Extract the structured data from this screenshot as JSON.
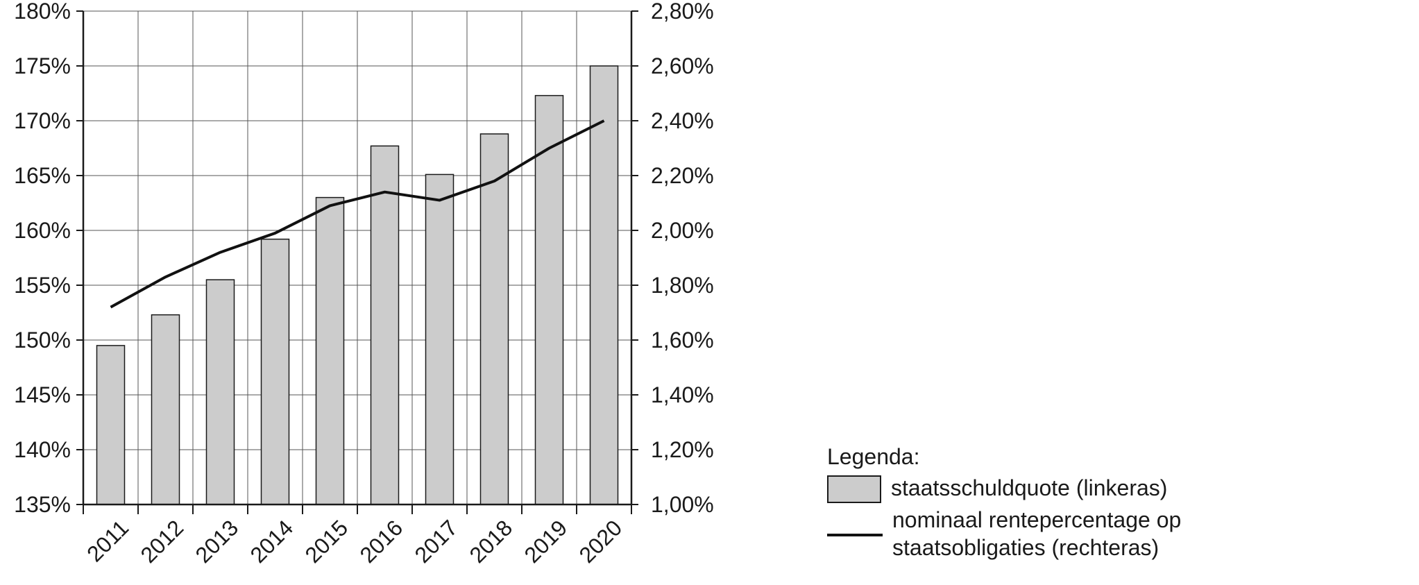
{
  "chart_data": {
    "type": "bar",
    "categories": [
      "2011",
      "2012",
      "2013",
      "2014",
      "2015",
      "2016",
      "2017",
      "2018",
      "2019",
      "2020"
    ],
    "series": [
      {
        "name": "staatsschuldquote (linkeras)",
        "type": "bar",
        "axis": "left",
        "values": [
          149.5,
          152.3,
          155.5,
          159.2,
          163.0,
          167.7,
          165.1,
          168.8,
          172.3,
          175.0
        ]
      },
      {
        "name": "nominaal rentepercentage op staatsobligaties (rechteras)",
        "type": "line",
        "axis": "right",
        "values": [
          1.72,
          1.83,
          1.92,
          1.99,
          2.09,
          2.14,
          2.11,
          2.18,
          2.3,
          2.4
        ]
      }
    ],
    "y_left": {
      "ylim": [
        135,
        180
      ],
      "ticks": [
        135,
        140,
        145,
        150,
        155,
        160,
        165,
        170,
        175,
        180
      ],
      "tick_labels": [
        "135%",
        "140%",
        "145%",
        "150%",
        "155%",
        "160%",
        "165%",
        "170%",
        "175%",
        "180%"
      ]
    },
    "y_right": {
      "ylim": [
        1.0,
        2.8
      ],
      "ticks": [
        1.0,
        1.2,
        1.4,
        1.6,
        1.8,
        2.0,
        2.2,
        2.4,
        2.6,
        2.8
      ],
      "tick_labels": [
        "1,00%",
        "1,20%",
        "1,40%",
        "1,60%",
        "1,80%",
        "2,00%",
        "2,20%",
        "2,40%",
        "2,60%",
        "2,80%"
      ]
    },
    "grid": true,
    "legend_position": "bottom-right",
    "bar_color": "#cccccc",
    "line_color": "#111111"
  },
  "legend": {
    "title": "Legenda:",
    "bar_label": "staatsschuldquote (linkeras)",
    "line_label_1": "nominaal rentepercentage op",
    "line_label_2": "staatsobligaties (rechteras)"
  }
}
